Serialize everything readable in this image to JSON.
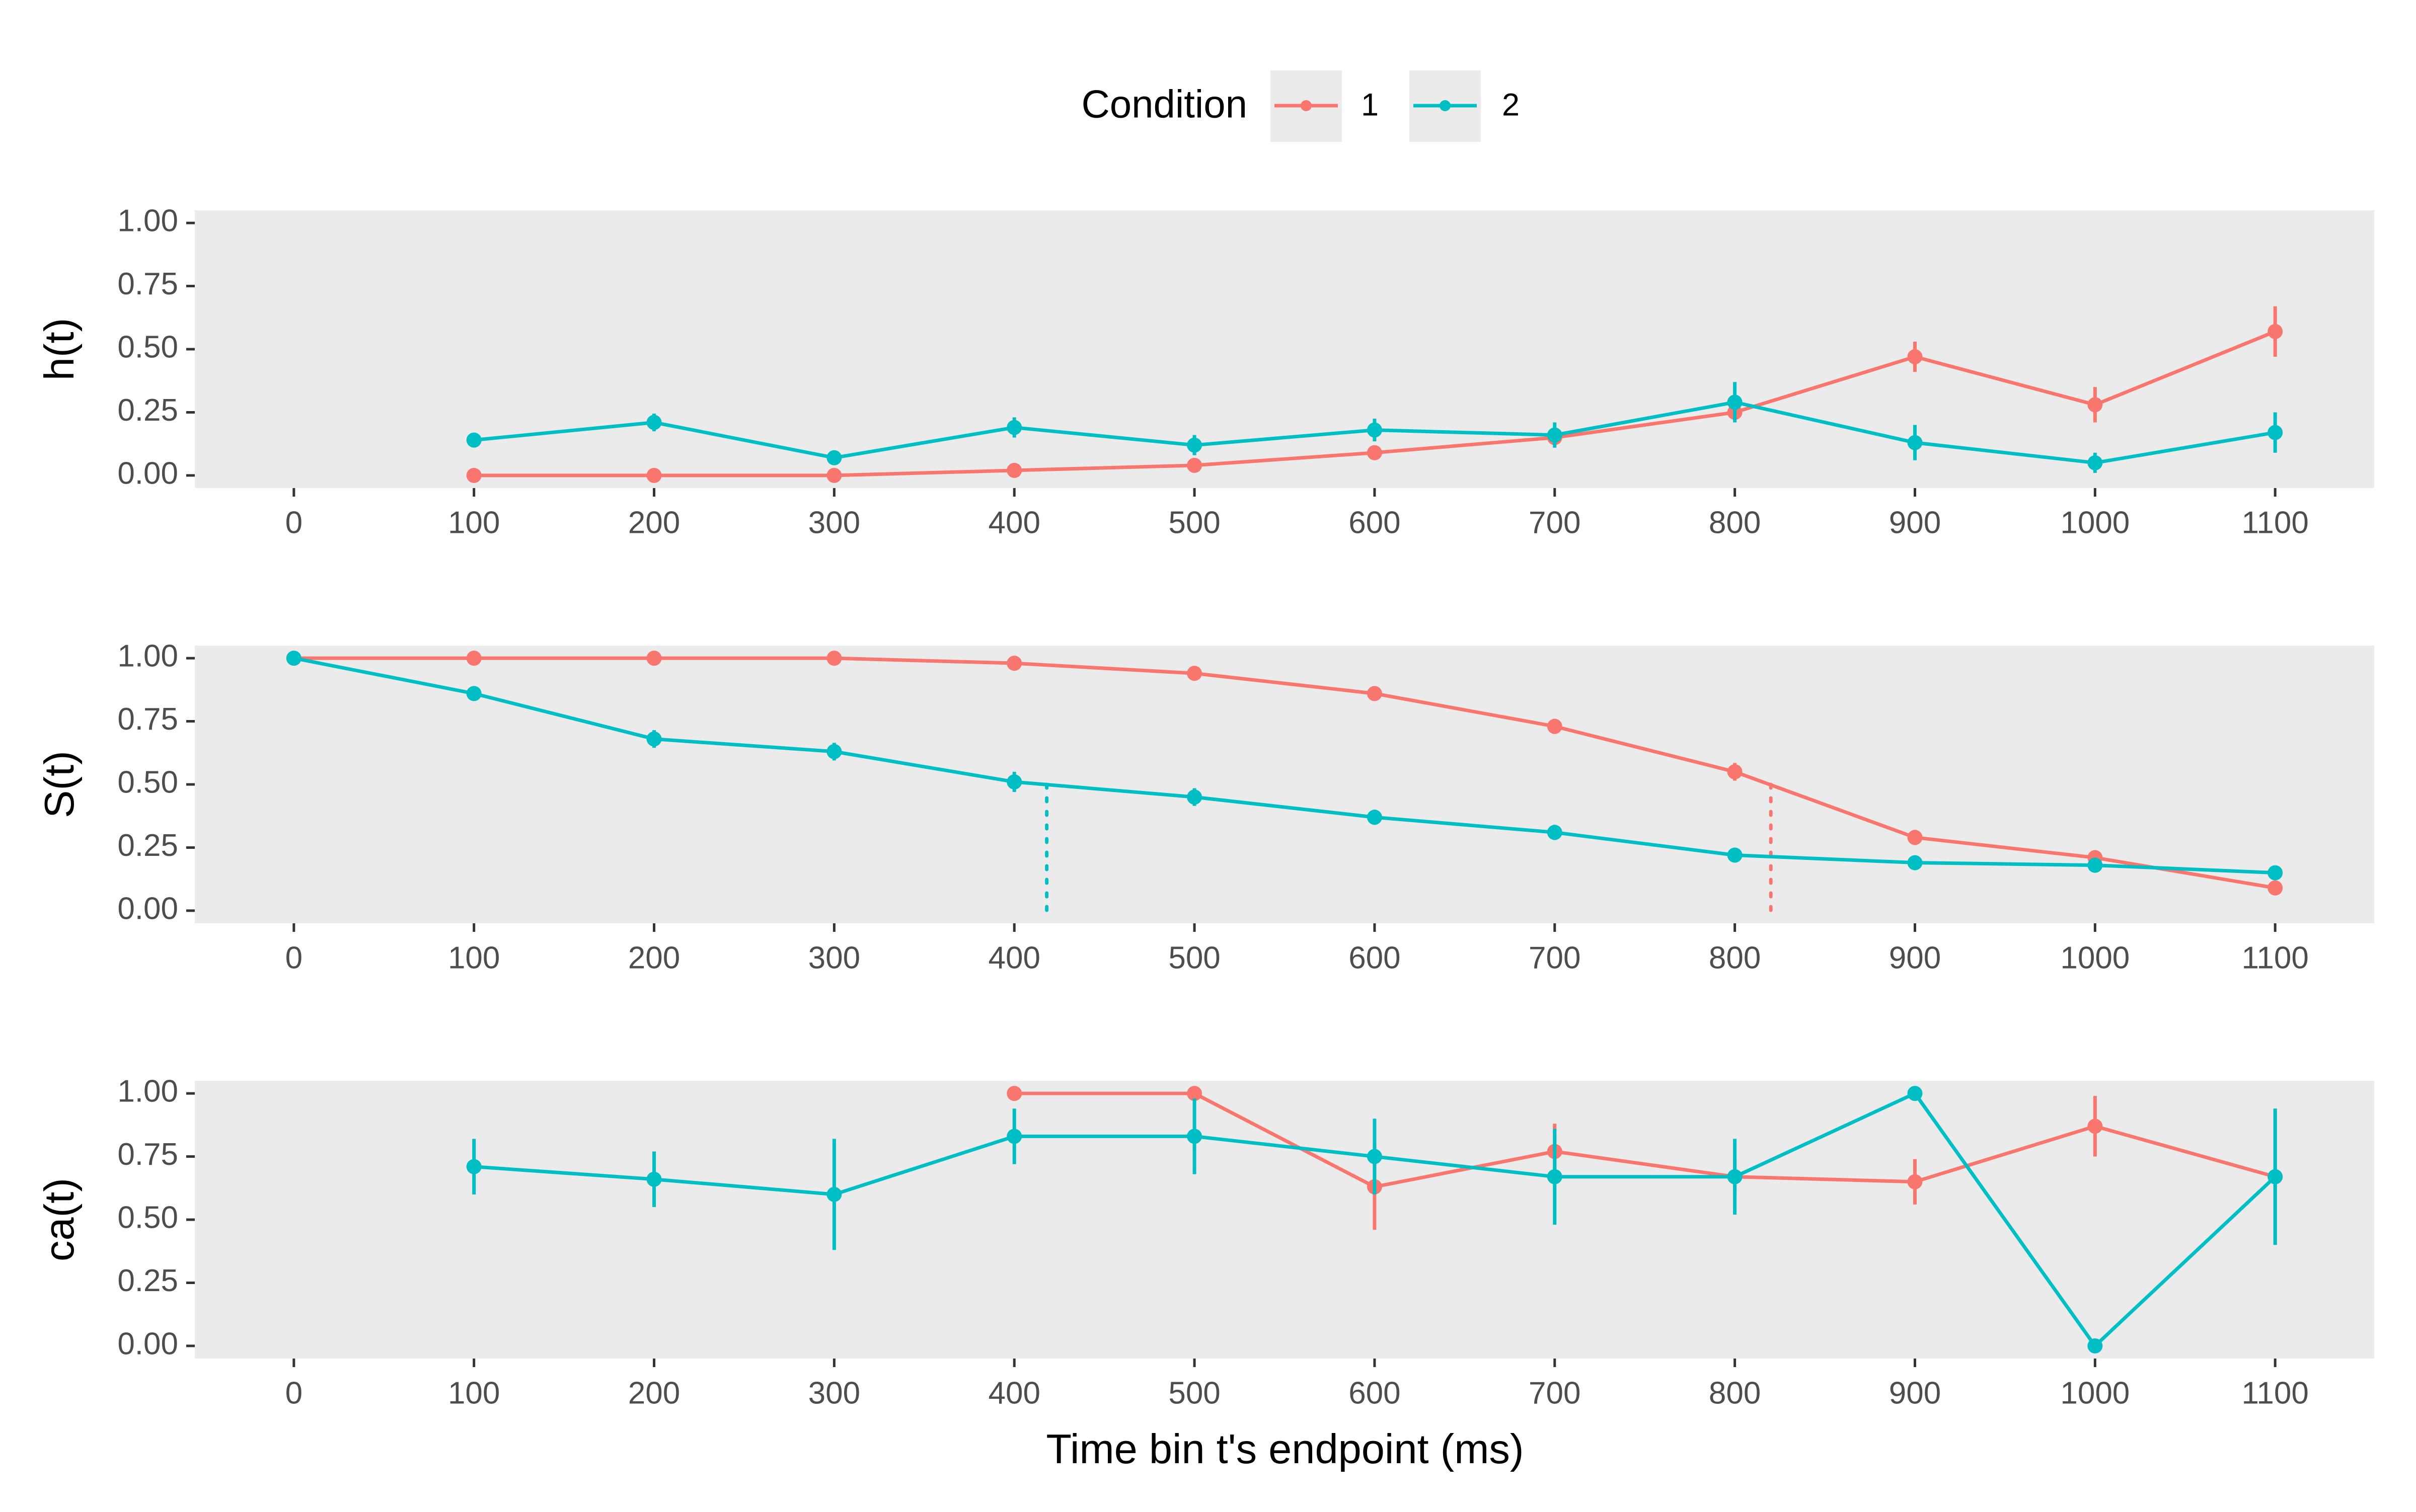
{
  "legend": {
    "title": "Condition",
    "items": [
      {
        "label": "1",
        "color": "#F8766D"
      },
      {
        "label": "2",
        "color": "#00BFC4"
      }
    ]
  },
  "xlabel": "Time bin t's endpoint (ms)",
  "chart_data": [
    {
      "type": "line",
      "ylabel": "h(t)",
      "xlim": [
        -55,
        1155
      ],
      "ylim": [
        -0.05,
        1.05
      ],
      "x_ticks": [
        0,
        100,
        200,
        300,
        400,
        500,
        600,
        700,
        800,
        900,
        1000,
        1100
      ],
      "y_ticks": [
        "0.00",
        "0.25",
        "0.50",
        "0.75",
        "1.00"
      ],
      "grid": false,
      "legend_position": "top",
      "series": [
        {
          "name": "1",
          "color": "#F8766D",
          "x": [
            100,
            200,
            300,
            400,
            500,
            600,
            700,
            800,
            900,
            1000,
            1100
          ],
          "y": [
            0.0,
            0.0,
            0.0,
            0.02,
            0.04,
            0.09,
            0.15,
            0.25,
            0.47,
            0.28,
            0.57
          ],
          "err": [
            0.01,
            0.01,
            0.01,
            0.01,
            0.015,
            0.02,
            0.025,
            0.03,
            0.06,
            0.07,
            0.1
          ]
        },
        {
          "name": "2",
          "color": "#00BFC4",
          "x": [
            100,
            200,
            300,
            400,
            500,
            600,
            700,
            800,
            900,
            1000,
            1100
          ],
          "y": [
            0.14,
            0.21,
            0.07,
            0.19,
            0.12,
            0.18,
            0.16,
            0.29,
            0.13,
            0.05,
            0.17
          ],
          "err": [
            0.025,
            0.035,
            0.025,
            0.04,
            0.04,
            0.045,
            0.05,
            0.08,
            0.07,
            0.04,
            0.08
          ]
        }
      ]
    },
    {
      "type": "line",
      "ylabel": "S(t)",
      "xlim": [
        -55,
        1155
      ],
      "ylim": [
        -0.05,
        1.05
      ],
      "x_ticks": [
        0,
        100,
        200,
        300,
        400,
        500,
        600,
        700,
        800,
        900,
        1000,
        1100
      ],
      "y_ticks": [
        "0.00",
        "0.25",
        "0.50",
        "0.75",
        "1.00"
      ],
      "grid": false,
      "median_lines": [
        {
          "condition": "2",
          "x": 418,
          "y": 0.5,
          "color": "#00BFC4"
        },
        {
          "condition": "1",
          "x": 820,
          "y": 0.5,
          "color": "#F8766D"
        }
      ],
      "series": [
        {
          "name": "1",
          "color": "#F8766D",
          "x": [
            0,
            100,
            200,
            300,
            400,
            500,
            600,
            700,
            800,
            900,
            1000,
            1100
          ],
          "y": [
            1.0,
            1.0,
            1.0,
            1.0,
            0.98,
            0.94,
            0.86,
            0.73,
            0.55,
            0.29,
            0.21,
            0.09
          ],
          "err": [
            0.0,
            0.0,
            0.0,
            0.0,
            0.01,
            0.015,
            0.02,
            0.03,
            0.035,
            0.03,
            0.025,
            0.015
          ]
        },
        {
          "name": "2",
          "color": "#00BFC4",
          "x": [
            0,
            100,
            200,
            300,
            400,
            500,
            600,
            700,
            800,
            900,
            1000,
            1100
          ],
          "y": [
            1.0,
            0.86,
            0.68,
            0.63,
            0.51,
            0.45,
            0.37,
            0.31,
            0.22,
            0.19,
            0.18,
            0.15
          ],
          "err": [
            0.0,
            0.02,
            0.035,
            0.035,
            0.04,
            0.035,
            0.03,
            0.03,
            0.025,
            0.02,
            0.02,
            0.02
          ]
        }
      ]
    },
    {
      "type": "line",
      "ylabel": "ca(t)",
      "xlim": [
        -55,
        1155
      ],
      "ylim": [
        -0.05,
        1.05
      ],
      "x_ticks": [
        0,
        100,
        200,
        300,
        400,
        500,
        600,
        700,
        800,
        900,
        1000,
        1100
      ],
      "y_ticks": [
        "0.00",
        "0.25",
        "0.50",
        "0.75",
        "1.00"
      ],
      "grid": false,
      "series": [
        {
          "name": "1",
          "color": "#F8766D",
          "x": [
            400,
            500,
            600,
            700,
            800,
            900,
            1000,
            1100
          ],
          "y": [
            1.0,
            1.0,
            0.63,
            0.77,
            0.67,
            0.65,
            0.87,
            0.67
          ],
          "err": [
            0.0,
            0.0,
            0.17,
            0.11,
            0.07,
            0.09,
            0.12,
            0.27
          ]
        },
        {
          "name": "2",
          "color": "#00BFC4",
          "x": [
            100,
            200,
            300,
            400,
            500,
            600,
            700,
            800,
            900,
            1000,
            1100
          ],
          "y": [
            0.71,
            0.66,
            0.6,
            0.83,
            0.83,
            0.75,
            0.67,
            0.67,
            1.0,
            0.0,
            0.67
          ],
          "err": [
            0.11,
            0.11,
            0.22,
            0.11,
            0.15,
            0.15,
            0.19,
            0.15,
            0.0,
            0.0,
            0.27
          ]
        }
      ]
    }
  ]
}
